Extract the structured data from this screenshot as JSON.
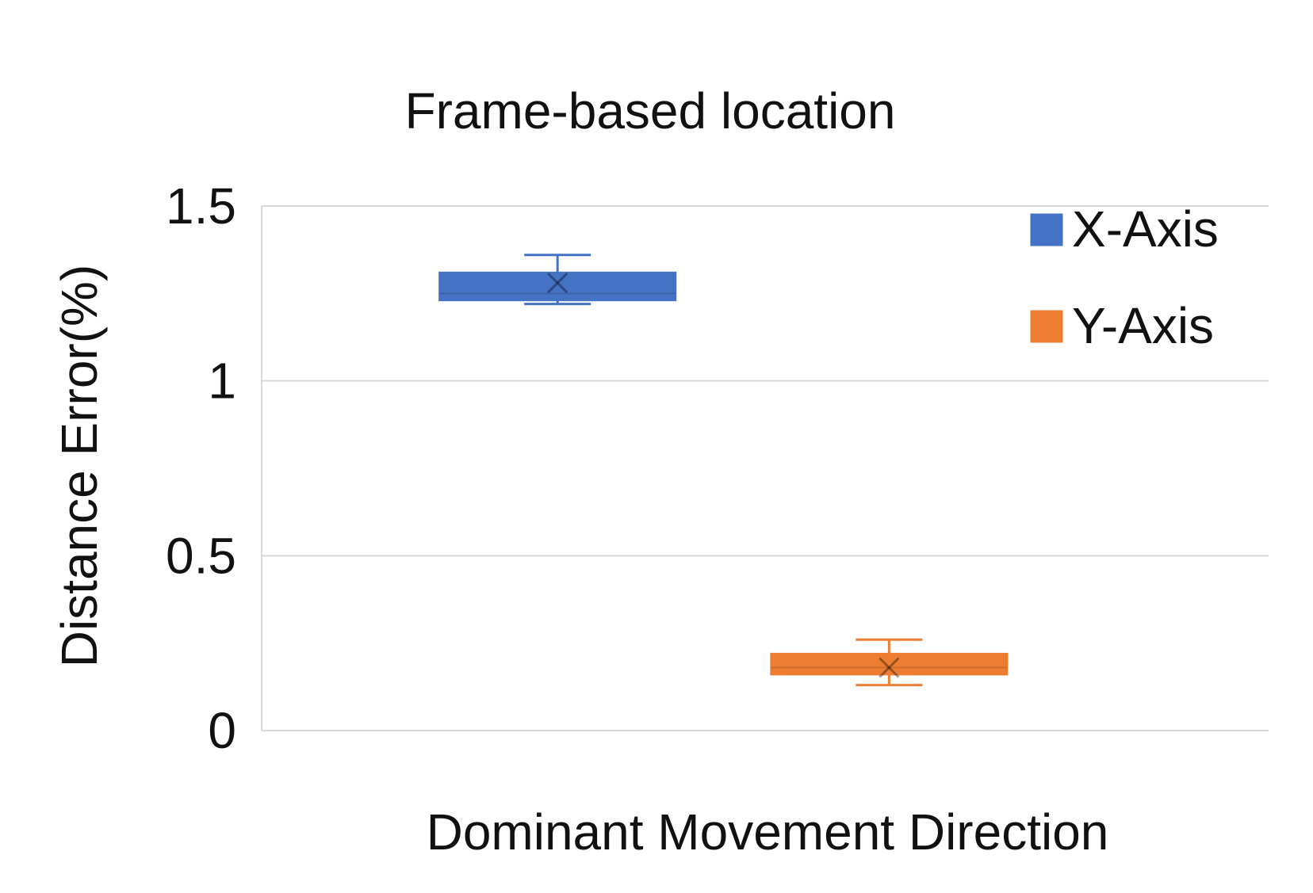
{
  "chart_data": {
    "type": "box",
    "title": "Frame-based location",
    "xlabel": "Dominant Movement Direction",
    "ylabel": "Distance Error(%)",
    "ylim": [
      0,
      1.5
    ],
    "yticks": [
      {
        "value": 0,
        "label": "0"
      },
      {
        "value": 0.5,
        "label": "0.5"
      },
      {
        "value": 1,
        "label": "1"
      },
      {
        "value": 1.5,
        "label": "1.5"
      }
    ],
    "grid": true,
    "legend_position": "top-right",
    "series": [
      {
        "name": "X-Axis",
        "color": "#4472C4",
        "min": 1.22,
        "q1": 1.23,
        "median": 1.25,
        "q3": 1.31,
        "max": 1.36,
        "mean": 1.28
      },
      {
        "name": "Y-Axis",
        "color": "#ED7D31",
        "min": 0.13,
        "q1": 0.16,
        "median": 0.18,
        "q3": 0.22,
        "max": 0.26,
        "mean": 0.18
      }
    ]
  }
}
